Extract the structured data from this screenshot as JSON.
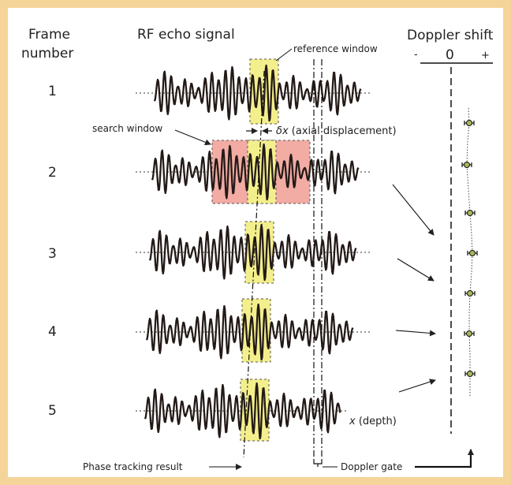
{
  "headers": {
    "frame_line1": "Frame",
    "frame_line2": "number",
    "rf_signal": "RF echo signal",
    "doppler_shift": "Doppler shift"
  },
  "doppler_scale": {
    "minus": "-",
    "zero": "0",
    "plus": "+"
  },
  "frames": [
    "1",
    "2",
    "3",
    "4",
    "5"
  ],
  "annotations": {
    "reference_window": "reference window",
    "search_window": "search window",
    "delta_symbol": "δx",
    "axial_displacement": " (axial displacement)",
    "depth_symbol": "x",
    "depth_text": " (depth)",
    "phase_tracking_result": "Phase tracking result",
    "doppler_gate": "Doppler gate"
  },
  "colors": {
    "frame_border": "#f5d49a",
    "reference_window": "#f3ef8c",
    "search_window": "#f2aca4",
    "waveform": "#231a17",
    "estimate_marker": "#a7b85a"
  }
}
